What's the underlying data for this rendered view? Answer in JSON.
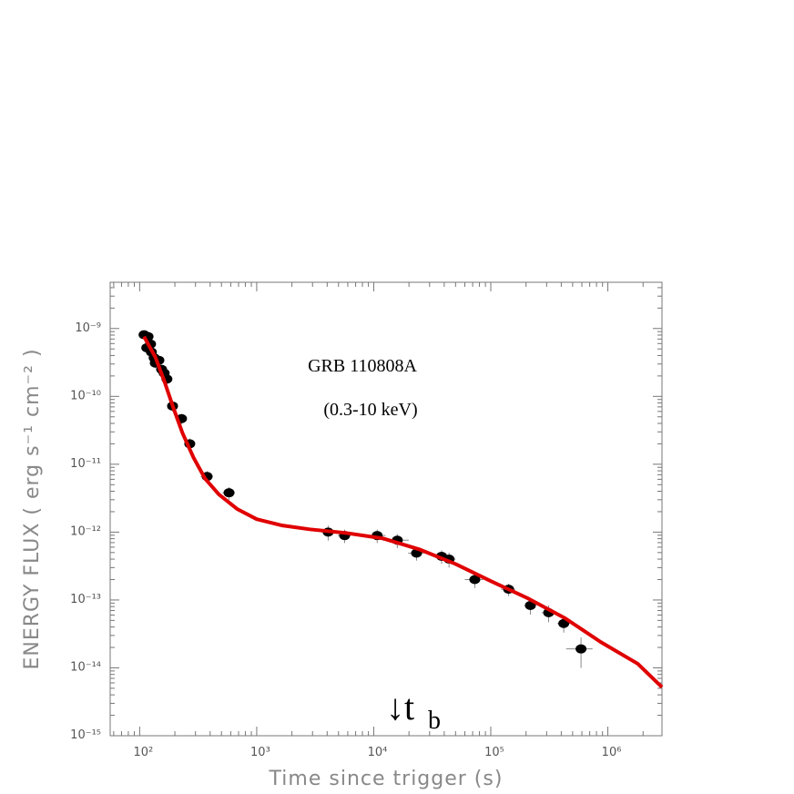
{
  "chart_data": {
    "type": "scatter",
    "xlabel": "Time since trigger (s)",
    "ylabel": "ENERGY FLUX ( erg s⁻¹ cm⁻² )",
    "annotations": {
      "title": "GRB 110808A",
      "band": "(0.3-10 keV)",
      "break_arrow": "↓t",
      "break_sub": "b"
    },
    "xscale": "log",
    "yscale": "log",
    "xlim": [
      56,
      2900000.0
    ],
    "ylim": [
      1e-15,
      4.8e-09
    ],
    "xticks": [
      {
        "value": 100,
        "label": "10²"
      },
      {
        "value": 1000,
        "label": "10³"
      },
      {
        "value": 10000,
        "label": "10⁴"
      },
      {
        "value": 100000,
        "label": "10⁵"
      },
      {
        "value": 1000000,
        "label": "10⁶"
      }
    ],
    "yticks": [
      {
        "value": 1e-15,
        "label": "10⁻¹⁵"
      },
      {
        "value": 1e-14,
        "label": "10⁻¹⁴"
      },
      {
        "value": 1e-13,
        "label": "10⁻¹³"
      },
      {
        "value": 1e-12,
        "label": "10⁻¹²"
      },
      {
        "value": 1e-11,
        "label": "10⁻¹¹"
      },
      {
        "value": 1e-10,
        "label": "10⁻¹⁰"
      },
      {
        "value": 1e-09,
        "label": "10⁻⁹"
      }
    ],
    "series": [
      {
        "type": "scatter",
        "color": "#000000",
        "x": [
          109,
          118,
          115,
          124,
          126,
          133,
          136,
          146,
          154,
          162,
          171,
          191,
          228,
          268,
          377,
          580,
          4080,
          5640,
          10700,
          15900,
          23200,
          38000,
          44000,
          73000,
          142000,
          218000,
          312000,
          420000,
          590000
        ],
        "xerr": [
          4,
          4,
          4,
          4,
          4,
          4,
          4,
          5,
          5,
          5,
          6,
          8,
          10,
          20,
          45,
          70,
          500,
          700,
          1900,
          4000,
          3500,
          5500,
          6000,
          13000,
          20000,
          25000,
          40000,
          50000,
          150000
        ],
        "values": [
          8.1e-10,
          7.6e-10,
          5.2e-10,
          5.9e-10,
          4.5e-10,
          3.7e-10,
          3.1e-10,
          3.4e-10,
          2.5e-10,
          2.2e-10,
          1.8e-10,
          7.2e-11,
          4.7e-11,
          2e-11,
          6.6e-12,
          3.8e-12,
          1e-12,
          8.9e-13,
          8.9e-13,
          7.6e-13,
          4.9e-13,
          4.4e-13,
          4e-13,
          2e-13,
          1.44e-13,
          8.3e-14,
          6.5e-14,
          4.5e-14,
          1.9e-14
        ],
        "yerr": [
          1.2e-10,
          1.1e-10,
          8e-11,
          9e-11,
          7e-11,
          6e-11,
          5e-11,
          5e-11,
          4e-11,
          3.5e-11,
          3e-11,
          1.2e-11,
          8e-12,
          4e-12,
          1.3e-12,
          8e-13,
          2.5e-13,
          2e-13,
          2e-13,
          1.8e-13,
          1.1e-13,
          1e-13,
          1e-13,
          5e-14,
          3e-14,
          2.2e-14,
          1.8e-14,
          1.2e-14,
          9e-15
        ]
      },
      {
        "type": "line",
        "color": "#e00000",
        "x": [
          109,
          136,
          162,
          194,
          232,
          288,
          363,
          475,
          678,
          1000,
          1660,
          2840,
          5830,
          11900,
          24300,
          49800,
          100000,
          209000,
          430000,
          870000,
          1800000,
          2900000
        ],
        "values": [
          7.6e-10,
          3.8e-10,
          1.7e-10,
          6.8e-11,
          2.9e-11,
          1.26e-11,
          6.1e-12,
          3.6e-12,
          2.2e-12,
          1.55e-12,
          1.25e-12,
          1.1e-12,
          9.7e-13,
          8.1e-13,
          5.6e-13,
          3.4e-13,
          1.9e-13,
          1.05e-13,
          5.4e-14,
          2.4e-14,
          1.15e-14,
          5.2e-15
        ]
      }
    ]
  }
}
